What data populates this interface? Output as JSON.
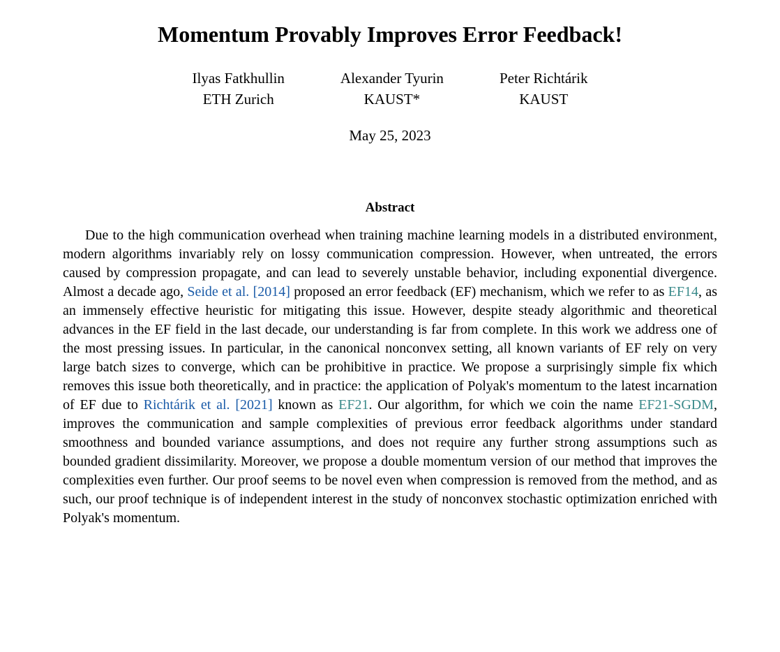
{
  "title": "Momentum Provably Improves Error Feedback!",
  "authors": [
    {
      "name": "Ilyas Fatkhullin",
      "affiliation": "ETH Zurich"
    },
    {
      "name": "Alexander Tyurin",
      "affiliation": "KAUST*"
    },
    {
      "name": "Peter Richtárik",
      "affiliation": "KAUST"
    }
  ],
  "date": "May 25, 2023",
  "abstract_heading": "Abstract",
  "abstract": {
    "part1": "Due to the high communication overhead when training machine learning models in a distributed environment, modern algorithms invariably rely on lossy communication compression. However, when untreated, the errors caused by compression propagate, and can lead to severely unstable behavior, including exponential divergence. Almost a decade ago, ",
    "cite1_author": "Seide et al.",
    "cite1_year": "[2014]",
    "part2": " proposed an error feedback (EF) mechanism, which we refer to as ",
    "algo1": "EF14",
    "part3": ", as an immensely effective heuristic for mitigating this issue. However, despite steady algorithmic and theoretical advances in the EF field in the last decade, our understanding is far from complete. In this work we address one of the most pressing issues. In particular, in the canonical nonconvex setting, all known variants of EF rely on very large batch sizes to converge, which can be prohibitive in practice. We propose a surprisingly simple fix which removes this issue both theoretically, and in practice: the application of Polyak's momentum to the latest incarnation of EF due to ",
    "cite2_author": "Richtárik et al.",
    "cite2_year": "[2021]",
    "part4": " known as ",
    "algo2": "EF21",
    "part5": ". Our algorithm, for which we coin the name ",
    "algo3": "EF21-SGDM",
    "part6": ", improves the communication and sample complexities of previous error feedback algorithms under standard smoothness and bounded variance assumptions, and does not require any further strong assumptions such as bounded gradient dissimilarity. Moreover, we propose a double momentum version of our method that improves the complexities even further. Our proof seems to be novel even when compression is removed from the method, and as such, our proof technique is of independent interest in the study of nonconvex stochastic optimization enriched with Polyak's momentum."
  },
  "colors": {
    "cite": "#1a5ba8",
    "algo": "#3a8a8a",
    "text": "#000000",
    "background": "#ffffff"
  },
  "typography": {
    "title_fontsize": 32,
    "title_fontweight": "bold",
    "author_fontsize": 21,
    "date_fontsize": 21,
    "abstract_heading_fontsize": 19,
    "abstract_body_fontsize": 20,
    "font_family": "Times New Roman"
  }
}
